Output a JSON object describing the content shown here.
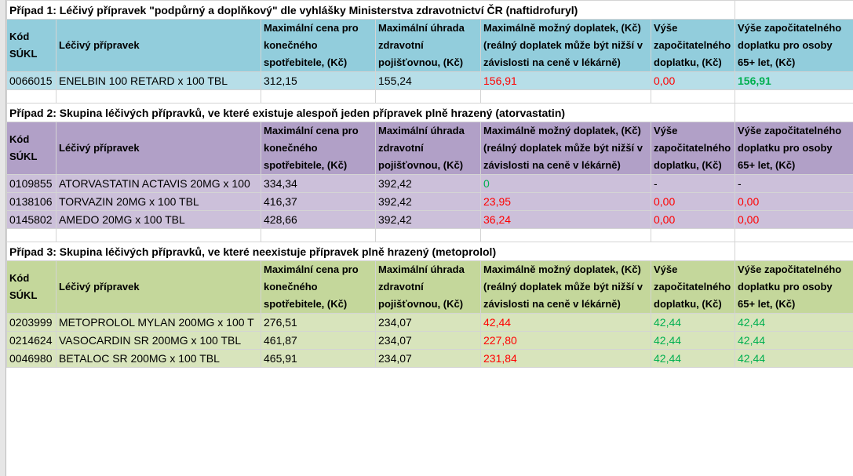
{
  "sections": [
    {
      "title": "Případ 1: Léčivý přípravek \"podpůrný a doplňkový\" dle vyhlášky Ministerstva zdravotnictví ČR (naftidrofuryl)",
      "header": [
        "Kód SÚKL",
        "Léčivý přípravek",
        "Maximální cena pro konečného spotřebitele, (Kč)",
        "Maximální úhrada zdravotní pojišťovnou, (Kč)",
        "Maximálně možný doplatek, (Kč) (reálný doplatek může být nižší v závislosti na ceně v lékárně)",
        "Výše započitatelného doplatku, (Kč)",
        "Výše započitatelného doplatku pro osoby 65+ let, (Kč)"
      ],
      "rows": [
        [
          "0066015",
          "ENELBIN 100 RETARD x 100 TBL",
          "312,15",
          "155,24",
          "156,91",
          "0,00",
          "156,91"
        ]
      ]
    },
    {
      "title": "Případ 2: Skupina léčivých přípravků, ve které existuje alespoň jeden přípravek plně hrazený (atorvastatin)",
      "header": [
        "Kód SÚKL",
        "Léčivý přípravek",
        "Maximální cena pro konečného spotřebitele, (Kč)",
        "Maximální úhrada zdravotní pojišťovnou, (Kč)",
        "Maximálně možný doplatek, (Kč) (reálný doplatek může být nižší v závislosti na ceně v lékárně)",
        "Výše započitatelného doplatku, (Kč)",
        "Výše započitatelného doplatku pro osoby 65+ let, (Kč)"
      ],
      "rows": [
        [
          "0109855",
          "ATORVASTATIN ACTAVIS 20MG x 100",
          "334,34",
          "392,42",
          "0",
          "-",
          "-"
        ],
        [
          "0138106",
          "TORVAZIN 20MG x 100 TBL",
          "416,37",
          "392,42",
          "23,95",
          "0,00",
          "0,00"
        ],
        [
          "0145802",
          "AMEDO  20MG x 100 TBL",
          "428,66",
          "392,42",
          "36,24",
          "0,00",
          "0,00"
        ]
      ]
    },
    {
      "title": "Případ 3: Skupina léčivých přípravků, ve které neexistuje přípravek plně hrazený (metoprolol)",
      "header": [
        "Kód SÚKL",
        "Léčivý přípravek",
        "Maximální cena pro konečného spotřebitele, (Kč)",
        "Maximální úhrada zdravotní pojišťovnou, (Kč)",
        "Maximálně možný doplatek, (Kč) (reálný doplatek může být nižší v závislosti na ceně v lékárně)",
        "Výše započitatelného doplatku, (Kč)",
        "Výše započitatelného doplatku pro osoby 65+ let, (Kč)"
      ],
      "rows": [
        [
          "0203999",
          "METOPROLOL MYLAN 200MG x 100 T",
          "276,51",
          "234,07",
          "42,44",
          "42,44",
          "42,44"
        ],
        [
          "0214624",
          "VASOCARDIN SR 200MG x 100 TBL",
          "461,87",
          "234,07",
          "227,80",
          "42,44",
          "42,44"
        ],
        [
          "0046980",
          "BETALOC SR 200MG x 100 TBL",
          "465,91",
          "234,07",
          "231,84",
          "42,44",
          "42,44"
        ]
      ]
    }
  ]
}
